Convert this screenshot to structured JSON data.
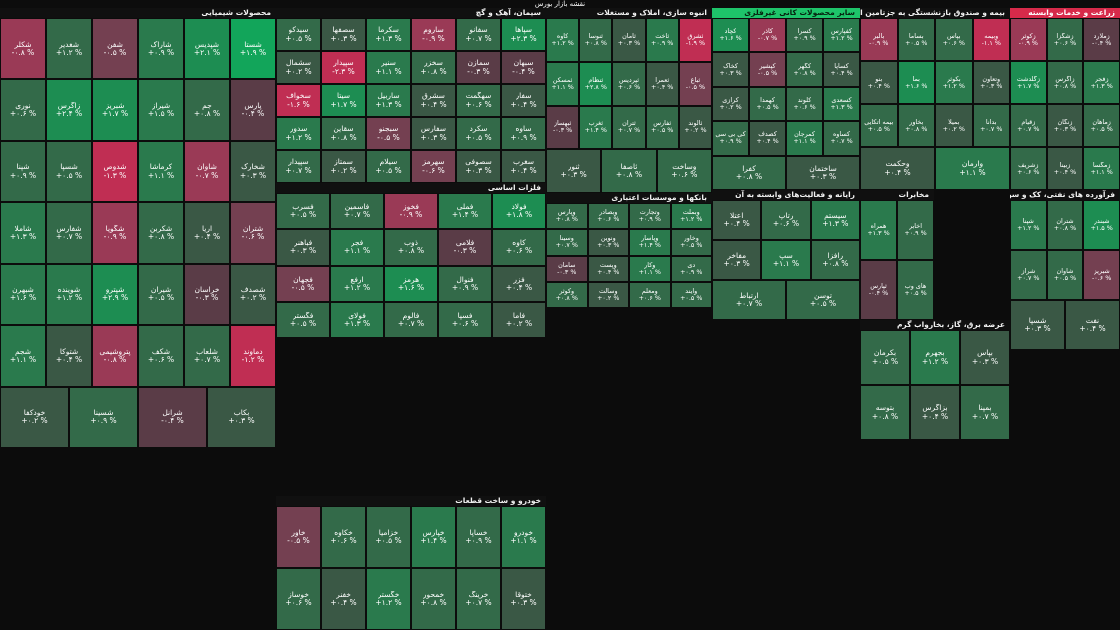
{
  "page": {
    "title": "نقشه بازار بورس"
  },
  "palette": {
    "g5": "#12a55a",
    "g4": "#1d8d52",
    "g3": "#2a7a4d",
    "g2": "#336a49",
    "g1": "#3a5845",
    "n0": "#454545",
    "r1": "#5a3c47",
    "r2": "#744051",
    "r3": "#9a3a56",
    "r4": "#c02e53",
    "r5": "#d62a4c"
  },
  "sectors": [
    {
      "name": "محصولات شیمیایی",
      "items": [
        [
          "شستا",
          "+۱.۹ %",
          "g5"
        ],
        [
          "شپدیس",
          "+۲.۱ %",
          "g4"
        ],
        [
          "شاراک",
          "+۰.۹ %",
          "g3"
        ],
        [
          "شفن",
          "-۰.۵ %",
          "r2"
        ],
        [
          "شغدیر",
          "+۱.۲ %",
          "g2"
        ],
        [
          "شکلر",
          "-۰.۸ %",
          "r3"
        ],
        [
          "پارس",
          "-۰.۴ %",
          "r1"
        ],
        [
          "جم",
          "+۰.۸ %",
          "g2"
        ],
        [
          "شیراز",
          "+۱.۵ %",
          "g3"
        ],
        [
          "شبریز",
          "+۱.۷ %",
          "g4"
        ],
        [
          "زاگرس",
          "+۲.۴ %",
          "g4"
        ],
        [
          "نوری",
          "+۰.۶ %",
          "g2"
        ],
        [
          "شخارک",
          "+۰.۳ %",
          "g1"
        ],
        [
          "شاوان",
          "-۰.۷ %",
          "r3"
        ],
        [
          "کرماشا",
          "+۱.۱ %",
          "g3"
        ],
        [
          "شدوص",
          "-۱.۳ %",
          "r4"
        ],
        [
          "شسپا",
          "+۰.۵ %",
          "g2"
        ],
        [
          "شپنا",
          "+۰.۹ %",
          "g2"
        ],
        [
          "شتران",
          "-۰.۶ %",
          "r2"
        ],
        [
          "آریا",
          "+۰.۴ %",
          "g1"
        ],
        [
          "شکربن",
          "+۰.۸ %",
          "g2"
        ],
        [
          "شگویا",
          "-۰.۹ %",
          "r3"
        ],
        [
          "شفارس",
          "+۰.۷ %",
          "g2"
        ],
        [
          "شاملا",
          "+۱.۳ %",
          "g3"
        ],
        [
          "شصدف",
          "+۰.۲ %",
          "g1"
        ],
        [
          "خراسان",
          "-۰.۳ %",
          "r1"
        ],
        [
          "شیران",
          "+۰.۵ %",
          "g2"
        ],
        [
          "شپترو",
          "+۲.۹ %",
          "g4"
        ],
        [
          "شوینده",
          "+۱.۲ %",
          "g3"
        ],
        [
          "شبهرن",
          "+۱.۶ %",
          "g3"
        ],
        [
          "دماوند",
          "-۱.۲ %",
          "r4"
        ],
        [
          "شلعاب",
          "+۰.۷ %",
          "g2"
        ],
        [
          "شکف",
          "+۰.۶ %",
          "g2"
        ],
        [
          "پتروشیمی",
          "-۰.۸ %",
          "r3"
        ],
        [
          "شتوکا",
          "+۰.۴ %",
          "g1"
        ],
        [
          "شجم",
          "+۱.۱ %",
          "g3"
        ],
        [
          "بکاب",
          "+۰.۳ %",
          "g1"
        ],
        [
          "شرانل",
          "-۰.۴ %",
          "r1"
        ],
        [
          "شسینا",
          "+۰.۹ %",
          "g2"
        ],
        [
          "خودکفا",
          "+۰.۲ %",
          "g1"
        ]
      ]
    },
    {
      "name": "سیمان، آهک و گچ",
      "items": [
        [
          "سپاها",
          "+۲.۳ %",
          "g4"
        ],
        [
          "سفانو",
          "+۰.۷ %",
          "g2"
        ],
        [
          "ساروم",
          "-۰.۹ %",
          "r3"
        ],
        [
          "سکرما",
          "+۱.۳ %",
          "g3"
        ],
        [
          "سصفها",
          "+۰.۳ %",
          "g1"
        ],
        [
          "سیدکو",
          "+۰.۵ %",
          "g2"
        ],
        [
          "سبهان",
          "-۰.۴ %",
          "r1"
        ],
        [
          "سمازن",
          "-۰.۳ %",
          "r1"
        ],
        [
          "سخزر",
          "+۰.۸ %",
          "g2"
        ],
        [
          "سنیر",
          "+۱.۱ %",
          "g3"
        ],
        [
          "سپیدار",
          "-۲.۳ %",
          "r4"
        ],
        [
          "سشمال",
          "+۰.۲ %",
          "g1"
        ],
        [
          "سفار",
          "+۰.۴ %",
          "g1"
        ],
        [
          "سهگمت",
          "+۰.۶ %",
          "g2"
        ],
        [
          "سشرق",
          "+۰.۴ %",
          "g1"
        ],
        [
          "ساربیل",
          "+۱.۳ %",
          "g3"
        ],
        [
          "سیتا",
          "+۱.۷ %",
          "g4"
        ],
        [
          "سخواف",
          "-۱.۶ %",
          "r4"
        ],
        [
          "ساوه",
          "+۰.۹ %",
          "g2"
        ],
        [
          "سکرد",
          "+۰.۵ %",
          "g2"
        ],
        [
          "سفارس",
          "+۰.۳ %",
          "g1"
        ],
        [
          "سبجنو",
          "-۰.۵ %",
          "r2"
        ],
        [
          "سقاین",
          "+۰.۸ %",
          "g2"
        ],
        [
          "سدور",
          "+۱.۲ %",
          "g3"
        ],
        [
          "سغرب",
          "+۰.۴ %",
          "g1"
        ],
        [
          "سصوفی",
          "+۰.۳ %",
          "g1"
        ],
        [
          "سهرمز",
          "-۰.۶ %",
          "r2"
        ],
        [
          "سیلام",
          "+۰.۵ %",
          "g2"
        ],
        [
          "سمتاز",
          "+۰.۲ %",
          "g1"
        ],
        [
          "سپیدار",
          "+۰.۷ %",
          "g2"
        ]
      ]
    },
    {
      "name": "انبوه سازی، املاک و مستغلات",
      "items": [
        [
          "ثشرق",
          "-۱.۹ %",
          "r4"
        ],
        [
          "ثاخت",
          "+۰.۹ %",
          "g3"
        ],
        [
          "ثامان",
          "+۰.۳ %",
          "g1"
        ],
        [
          "ثنوسا",
          "+۰.۸ %",
          "g2"
        ],
        [
          "کاوه",
          "+۱.۲ %",
          "g3"
        ],
        [
          "ثباغ",
          "-۰.۵ %",
          "r2"
        ],
        [
          "ثعمرا",
          "+۰.۴ %",
          "g1"
        ],
        [
          "ثپردیس",
          "+۰.۶ %",
          "g2"
        ],
        [
          "ثنظام",
          "+۲.۸ %",
          "g4"
        ],
        [
          "ثمسکن",
          "+۱.۱ %",
          "g3"
        ],
        [
          "ثالوند",
          "+۰.۲ %",
          "g1"
        ],
        [
          "ثفارس",
          "+۰.۵ %",
          "g2"
        ],
        [
          "ثتران",
          "+۰.۷ %",
          "g2"
        ],
        [
          "ثغرب",
          "+۱.۴ %",
          "g3"
        ],
        [
          "ثبهساز",
          "-۰.۳ %",
          "r1"
        ],
        [
          "وساخت",
          "+۰.۶ %",
          "g2"
        ],
        [
          "ثاصفا",
          "+۰.۸ %",
          "g2"
        ],
        [
          "ثنور",
          "+۰.۳ %",
          "g1"
        ]
      ]
    },
    {
      "name": "سایر محصولات کانی غیرفلزی",
      "items": [
        [
          "کفپارس",
          "+۱.۲ %",
          "g3"
        ],
        [
          "کسرا",
          "+۰.۹ %",
          "g2"
        ],
        [
          "کاذر",
          "-۰.۷ %",
          "r3"
        ],
        [
          "کچاد",
          "+۱.۶ %",
          "g4"
        ],
        [
          "کساپا",
          "+۰.۴ %",
          "g1"
        ],
        [
          "کگهر",
          "+۰.۸ %",
          "g2"
        ],
        [
          "کپشیر",
          "-۰.۵ %",
          "r2"
        ],
        [
          "کخاک",
          "+۰.۳ %",
          "g1"
        ],
        [
          "کسعدی",
          "+۱.۳ %",
          "g3"
        ],
        [
          "کلوند",
          "+۰.۶ %",
          "g2"
        ],
        [
          "کهمدا",
          "+۰.۵ %",
          "g2"
        ],
        [
          "کرازی",
          "+۰.۲ %",
          "g1"
        ],
        [
          "کساوه",
          "+۰.۷ %",
          "g2"
        ],
        [
          "کمرجان",
          "+۱.۱ %",
          "g3"
        ],
        [
          "کصدف",
          "+۰.۴ %",
          "g1"
        ],
        [
          "کی بی سی",
          "+۰.۹ %",
          "g2"
        ],
        [
          "ساختمان",
          "+۰.۳ %",
          "g1"
        ],
        [
          "کفرا",
          "+۰.۸ %",
          "g2"
        ]
      ]
    },
    {
      "name": "بیمه و صندوق بازنشستگی به جزتامین اجتماعی",
      "items": [
        [
          "وبیمه",
          "-۱.۱ %",
          "r4"
        ],
        [
          "بپاس",
          "+۰.۶ %",
          "g2"
        ],
        [
          "بساما",
          "+۰.۵ %",
          "g2"
        ],
        [
          "بالبر",
          "-۰.۹ %",
          "r3"
        ],
        [
          "وتعاون",
          "+۰.۳ %",
          "g1"
        ],
        [
          "بکوثر",
          "+۱.۲ %",
          "g3"
        ],
        [
          "بما",
          "+۱.۶ %",
          "g4"
        ],
        [
          "بنو",
          "+۰.۴ %",
          "g1"
        ],
        [
          "بدانا",
          "+۰.۷ %",
          "g2"
        ],
        [
          "بمیلا",
          "+۰.۲ %",
          "g1"
        ],
        [
          "بخاور",
          "+۰.۸ %",
          "g2"
        ],
        [
          "بیمه اتکایی",
          "+۰.۵ %",
          "g2"
        ],
        [
          "وآرمان",
          "+۱.۱ %",
          "g3"
        ],
        [
          "وحکمت",
          "+۰.۴ %",
          "g1"
        ]
      ]
    },
    {
      "name": "زراعت و خدمات وابسته",
      "items": [
        [
          "زملارد",
          "-۰.۴ %",
          "r1"
        ],
        [
          "زشگزا",
          "+۰.۶ %",
          "g2"
        ],
        [
          "زکوثر",
          "-۰.۹ %",
          "r3"
        ],
        [
          "زفجر",
          "+۱.۳ %",
          "g3"
        ],
        [
          "زاگرس",
          "+۰.۸ %",
          "g2"
        ],
        [
          "زگلدشت",
          "+۱.۷ %",
          "g4"
        ],
        [
          "زماهان",
          "+۰.۵ %",
          "g2"
        ],
        [
          "زنگان",
          "+۰.۳ %",
          "g1"
        ],
        [
          "زقیام",
          "+۰.۷ %",
          "g2"
        ],
        [
          "زمگسا",
          "+۱.۱ %",
          "g3"
        ],
        [
          "زبینا",
          "+۰.۴ %",
          "g1"
        ],
        [
          "زشریف",
          "+۰.۶ %",
          "g2"
        ]
      ]
    },
    {
      "name": "فلزات اساسی",
      "items": [
        [
          "فولاد",
          "+۱.۸ %",
          "g4"
        ],
        [
          "فملی",
          "+۱.۴ %",
          "g3"
        ],
        [
          "فخوز",
          "-۰.۹ %",
          "r3"
        ],
        [
          "فاسمین",
          "+۰.۷ %",
          "g2"
        ],
        [
          "فسرب",
          "+۰.۵ %",
          "g2"
        ],
        [
          "کاوه",
          "+۰.۶ %",
          "g2"
        ],
        [
          "فلامی",
          "-۰.۳ %",
          "r1"
        ],
        [
          "ذوب",
          "+۰.۸ %",
          "g2"
        ],
        [
          "فجر",
          "+۱.۱ %",
          "g3"
        ],
        [
          "فباهنر",
          "+۰.۳ %",
          "g1"
        ],
        [
          "فزر",
          "+۰.۴ %",
          "g1"
        ],
        [
          "فنوال",
          "+۰.۹ %",
          "g2"
        ],
        [
          "هرمز",
          "+۱.۶ %",
          "g4"
        ],
        [
          "ارفع",
          "+۱.۲ %",
          "g3"
        ],
        [
          "فجهان",
          "-۰.۵ %",
          "r2"
        ],
        [
          "فاما",
          "+۰.۲ %",
          "g1"
        ],
        [
          "فسپا",
          "+۰.۶ %",
          "g2"
        ],
        [
          "فالوم",
          "+۰.۷ %",
          "g2"
        ],
        [
          "فولای",
          "+۱.۳ %",
          "g3"
        ],
        [
          "فگستر",
          "+۰.۵ %",
          "g2"
        ]
      ]
    },
    {
      "name": "بانکها و موسسات اعتباری",
      "items": [
        [
          "وبملت",
          "+۱.۲ %",
          "g3"
        ],
        [
          "وتجارت",
          "+۰.۹ %",
          "g2"
        ],
        [
          "وبصادر",
          "+۰.۶ %",
          "g2"
        ],
        [
          "وپارس",
          "+۰.۸ %",
          "g2"
        ],
        [
          "وخاور",
          "+۰.۵ %",
          "g2"
        ],
        [
          "وپاسار",
          "+۱.۴ %",
          "g3"
        ],
        [
          "ونوین",
          "+۰.۳ %",
          "g1"
        ],
        [
          "وسینا",
          "+۰.۷ %",
          "g2"
        ],
        [
          "دی",
          "+۰.۹ %",
          "g2"
        ],
        [
          "وکار",
          "+۱.۱ %",
          "g3"
        ],
        [
          "وپست",
          "+۰.۴ %",
          "g1"
        ],
        [
          "سامان",
          "-۰.۳ %",
          "r1"
        ],
        [
          "وآیند",
          "+۰.۵ %",
          "g2"
        ],
        [
          "ومعلم",
          "+۰.۶ %",
          "g2"
        ],
        [
          "وسالت",
          "+۰.۲ %",
          "g1"
        ],
        [
          "وکوثر",
          "+۰.۸ %",
          "g2"
        ]
      ]
    },
    {
      "name": "رایانه و فعالیت‌های وابسته به آن",
      "items": [
        [
          "سیستم",
          "+۱.۳ %",
          "g3"
        ],
        [
          "رتاپ",
          "+۰.۶ %",
          "g2"
        ],
        [
          "اعتلا",
          "+۰.۴ %",
          "g1"
        ],
        [
          "رافزا",
          "+۰.۸ %",
          "g2"
        ],
        [
          "سپ",
          "+۱.۱ %",
          "g3"
        ],
        [
          "مفاخر",
          "+۰.۳ %",
          "g1"
        ],
        [
          "توسن",
          "+۰.۵ %",
          "g2"
        ],
        [
          "ارتباط",
          "+۰.۷ %",
          "g2"
        ]
      ]
    },
    {
      "name": "مخابرات",
      "items": [
        [
          "اخابر",
          "+۰.۹ %",
          "g2"
        ],
        [
          "همراه",
          "+۱.۳ %",
          "g3"
        ],
        [
          "های وب",
          "+۰.۵ %",
          "g2"
        ],
        [
          "ثپارس",
          "-۰.۴ %",
          "r1"
        ]
      ]
    },
    {
      "name": "عرضه برق، گاز، بخارواب گرم",
      "items": [
        [
          "بپاس",
          "+۰.۳ %",
          "g1"
        ],
        [
          "بجهرم",
          "+۱.۲ %",
          "g3"
        ],
        [
          "بکرمان",
          "+۰.۵ %",
          "g2"
        ],
        [
          "بمپنا",
          "+۰.۷ %",
          "g2"
        ],
        [
          "بزاگرس",
          "+۰.۴ %",
          "g1"
        ],
        [
          "بتوسه",
          "+۰.۸ %",
          "g2"
        ]
      ]
    },
    {
      "name": "خودرو و ساخت قطعات",
      "items": [
        [
          "خودرو",
          "+۱.۱ %",
          "g3"
        ],
        [
          "خساپا",
          "+۰.۹ %",
          "g2"
        ],
        [
          "خپارس",
          "+۱.۴ %",
          "g3"
        ],
        [
          "خزامیا",
          "+۰.۵ %",
          "g2"
        ],
        [
          "خکاوه",
          "+۰.۶ %",
          "g2"
        ],
        [
          "خاور",
          "-۰.۵ %",
          "r2"
        ],
        [
          "ختوقا",
          "+۰.۳ %",
          "g1"
        ],
        [
          "خرینگ",
          "+۰.۷ %",
          "g2"
        ],
        [
          "خمحور",
          "+۰.۸ %",
          "g2"
        ],
        [
          "خگستر",
          "+۱.۲ %",
          "g3"
        ],
        [
          "خفنر",
          "+۰.۴ %",
          "g1"
        ],
        [
          "خوساز",
          "+۰.۶ %",
          "g2"
        ]
      ]
    },
    {
      "name": "فرآورده های نفتی، کک و سوخت هسته ای",
      "items": [
        [
          "شبندر",
          "+۱.۵ %",
          "g4"
        ],
        [
          "شتران",
          "+۰.۸ %",
          "g2"
        ],
        [
          "شپنا",
          "+۱.۲ %",
          "g3"
        ],
        [
          "شبریز",
          "-۰.۶ %",
          "r2"
        ],
        [
          "شاوان",
          "+۰.۵ %",
          "g2"
        ],
        [
          "شراز",
          "+۰.۷ %",
          "g2"
        ],
        [
          "نفت",
          "+۰.۴ %",
          "g1"
        ],
        [
          "شسپا",
          "+۰.۳ %",
          "g1"
        ]
      ]
    }
  ]
}
